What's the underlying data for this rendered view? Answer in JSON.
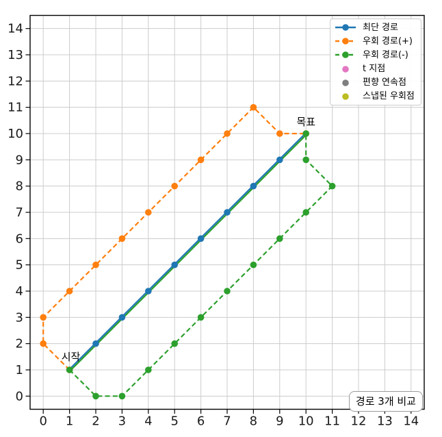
{
  "chart_data": {
    "type": "line",
    "title": "",
    "xlabel": "",
    "ylabel": "",
    "xlim": [
      -0.5,
      14.5
    ],
    "ylim": [
      -0.5,
      14.5
    ],
    "x_ticks": [
      0,
      1,
      2,
      3,
      4,
      5,
      6,
      7,
      8,
      9,
      10,
      11,
      12,
      13,
      14
    ],
    "y_ticks": [
      0,
      1,
      2,
      3,
      4,
      5,
      6,
      7,
      8,
      9,
      10,
      11,
      12,
      13,
      14
    ],
    "grid": true,
    "series": [
      {
        "name": "최단 경로",
        "color": "#1f77b4",
        "underlay_color": "#2ca02c",
        "style": "solid",
        "marker": "circle",
        "points": [
          [
            1,
            1
          ],
          [
            2,
            2
          ],
          [
            3,
            3
          ],
          [
            4,
            4
          ],
          [
            5,
            5
          ],
          [
            6,
            6
          ],
          [
            7,
            7
          ],
          [
            8,
            8
          ],
          [
            9,
            9
          ],
          [
            10,
            10
          ]
        ]
      },
      {
        "name": "우회 경로(+)",
        "color": "#ff7f0e",
        "style": "dashed",
        "marker": "circle",
        "points": [
          [
            1,
            1
          ],
          [
            0,
            2
          ],
          [
            0,
            3
          ],
          [
            1,
            4
          ],
          [
            2,
            5
          ],
          [
            3,
            6
          ],
          [
            4,
            7
          ],
          [
            5,
            8
          ],
          [
            6,
            9
          ],
          [
            7,
            10
          ],
          [
            8,
            11
          ],
          [
            9,
            10
          ],
          [
            10,
            10
          ]
        ]
      },
      {
        "name": "우회 경로(-)",
        "color": "#2ca02c",
        "style": "dashed",
        "marker": "circle",
        "points": [
          [
            1,
            1
          ],
          [
            2,
            0
          ],
          [
            3,
            0
          ],
          [
            4,
            1
          ],
          [
            5,
            2
          ],
          [
            6,
            3
          ],
          [
            7,
            4
          ],
          [
            8,
            5
          ],
          [
            9,
            6
          ],
          [
            10,
            7
          ],
          [
            11,
            8
          ],
          [
            10,
            9
          ],
          [
            10,
            10
          ]
        ]
      }
    ],
    "scatter_series": [
      {
        "name": "t 지점",
        "color": "#e377c2",
        "points_visible": false
      },
      {
        "name": "편향 연속점",
        "color": "#7f7f7f",
        "points_visible": false
      },
      {
        "name": "스냅된 우회점",
        "color": "#bcbd22",
        "points_visible": false
      }
    ],
    "legend": {
      "position": "upper-right",
      "entries": [
        {
          "label": "최단 경로",
          "color": "#1f77b4",
          "handle": "line-marker",
          "dashed": false
        },
        {
          "label": "우회 경로(+)",
          "color": "#ff7f0e",
          "handle": "line-marker",
          "dashed": true
        },
        {
          "label": "우회 경로(-)",
          "color": "#2ca02c",
          "handle": "line-marker",
          "dashed": true
        },
        {
          "label": "t 지점",
          "color": "#e377c2",
          "handle": "marker"
        },
        {
          "label": "편향 연속점",
          "color": "#7f7f7f",
          "handle": "marker"
        },
        {
          "label": "스냅된 우회점",
          "color": "#bcbd22",
          "handle": "marker"
        }
      ]
    },
    "annotations": [
      {
        "text": "시작",
        "x": 1.05,
        "y": 1.5
      },
      {
        "text": "목표",
        "x": 10.0,
        "y": 10.45
      }
    ],
    "corner_box_label": "경로 3개 비교",
    "colors": {
      "grid": "#cccccc",
      "spine": "#000000",
      "tick_label": "#1a1a1a",
      "annotation": "#000000"
    }
  }
}
